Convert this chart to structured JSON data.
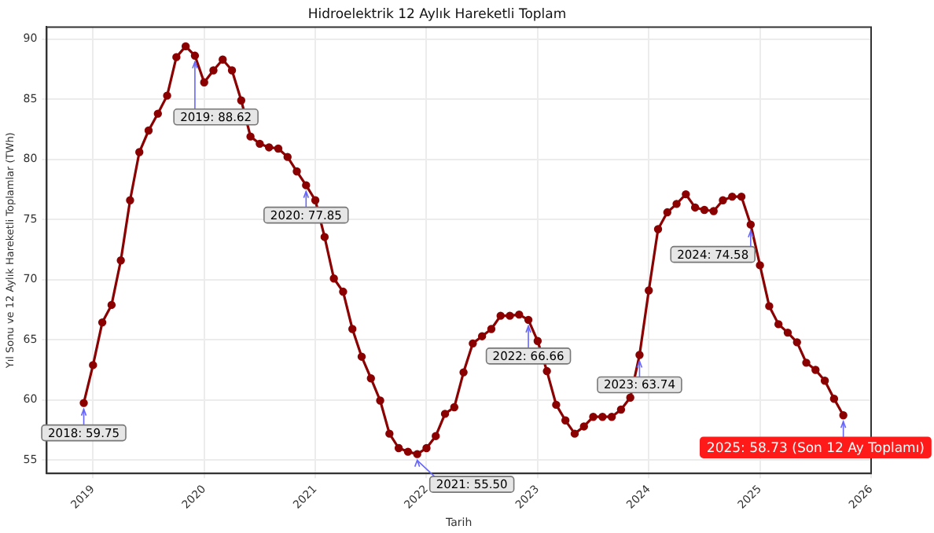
{
  "chart_data": {
    "type": "line",
    "title": "Hidroelektrik 12 Aylık Hareketli Toplam",
    "xlabel": "Tarih",
    "ylabel": "Yıl Sonu ve 12 Aylık Hareketli Toplamlar (TWh)",
    "x": [
      "2018-12",
      "2019-01",
      "2019-02",
      "2019-03",
      "2019-04",
      "2019-05",
      "2019-06",
      "2019-07",
      "2019-08",
      "2019-09",
      "2019-10",
      "2019-11",
      "2019-12",
      "2020-01",
      "2020-02",
      "2020-03",
      "2020-04",
      "2020-05",
      "2020-06",
      "2020-07",
      "2020-08",
      "2020-09",
      "2020-10",
      "2020-11",
      "2020-12",
      "2021-01",
      "2021-02",
      "2021-03",
      "2021-04",
      "2021-05",
      "2021-06",
      "2021-07",
      "2021-08",
      "2021-09",
      "2021-10",
      "2021-11",
      "2021-12",
      "2022-01",
      "2022-02",
      "2022-03",
      "2022-04",
      "2022-05",
      "2022-06",
      "2022-07",
      "2022-08",
      "2022-09",
      "2022-10",
      "2022-11",
      "2022-12",
      "2023-01",
      "2023-02",
      "2023-03",
      "2023-04",
      "2023-05",
      "2023-06",
      "2023-07",
      "2023-08",
      "2023-09",
      "2023-10",
      "2023-11",
      "2023-12",
      "2024-01",
      "2024-02",
      "2024-03",
      "2024-04",
      "2024-05",
      "2024-06",
      "2024-07",
      "2024-08",
      "2024-09",
      "2024-10",
      "2024-11",
      "2024-12",
      "2025-01",
      "2025-02",
      "2025-03",
      "2025-04",
      "2025-05",
      "2025-06",
      "2025-07",
      "2025-08",
      "2025-09",
      "2025-10"
    ],
    "series": [
      {
        "color": "#8b0000",
        "values": [
          59.75,
          62.9,
          66.45,
          67.9,
          71.6,
          76.6,
          80.6,
          82.4,
          83.8,
          85.3,
          88.5,
          89.4,
          88.62,
          86.4,
          87.4,
          88.3,
          87.4,
          84.9,
          81.9,
          81.3,
          81.0,
          80.9,
          80.2,
          79.0,
          77.85,
          76.6,
          73.55,
          70.1,
          69.0,
          65.9,
          63.6,
          61.8,
          59.95,
          57.2,
          56.0,
          55.7,
          55.5,
          56.0,
          57.0,
          58.85,
          59.4,
          62.3,
          64.7,
          65.3,
          65.9,
          67.0,
          67.0,
          67.1,
          66.66,
          64.9,
          62.4,
          59.6,
          58.3,
          57.2,
          57.8,
          58.6,
          58.6,
          58.6,
          59.2,
          60.2,
          63.74,
          69.1,
          74.2,
          75.6,
          76.3,
          77.1,
          76.0,
          75.8,
          75.7,
          76.6,
          76.9,
          76.9,
          74.58,
          71.2,
          67.8,
          66.3,
          65.6,
          64.8,
          63.1,
          62.5,
          61.6,
          60.1,
          58.73
        ]
      }
    ],
    "xlim": [
      "2018-08",
      "2026-01"
    ],
    "xticks": [
      {
        "value": "2019",
        "label": "2019"
      },
      {
        "value": "2020",
        "label": "2020"
      },
      {
        "value": "2021",
        "label": "2021"
      },
      {
        "value": "2022",
        "label": "2022"
      },
      {
        "value": "2023",
        "label": "2023"
      },
      {
        "value": "2024",
        "label": "2024"
      },
      {
        "value": "2025",
        "label": "2025"
      },
      {
        "value": "2026",
        "label": "2026"
      }
    ],
    "ylim": [
      53.9,
      91.0
    ],
    "yticks": [
      55,
      60,
      65,
      70,
      75,
      80,
      85,
      90
    ],
    "grid": true,
    "legend": false,
    "marker": "circle",
    "line_style": "solid",
    "annotations": [
      {
        "text": "2018: 59.75",
        "x": "2018-12",
        "y": 59.75
      },
      {
        "text": "2019: 88.62",
        "x": "2019-12",
        "y": 88.62
      },
      {
        "text": "2020: 77.85",
        "x": "2020-12",
        "y": 77.85
      },
      {
        "text": "2021: 55.50",
        "x": "2021-12",
        "y": 55.5
      },
      {
        "text": "2022: 66.66",
        "x": "2022-12",
        "y": 66.66
      },
      {
        "text": "2023: 63.74",
        "x": "2023-12",
        "y": 63.74
      },
      {
        "text": "2024: 74.58",
        "x": "2024-12",
        "y": 74.58
      },
      {
        "text": "2025: 58.73 (Son 12 Ay Toplamı)",
        "x": "2025-10",
        "y": 58.73
      }
    ]
  }
}
